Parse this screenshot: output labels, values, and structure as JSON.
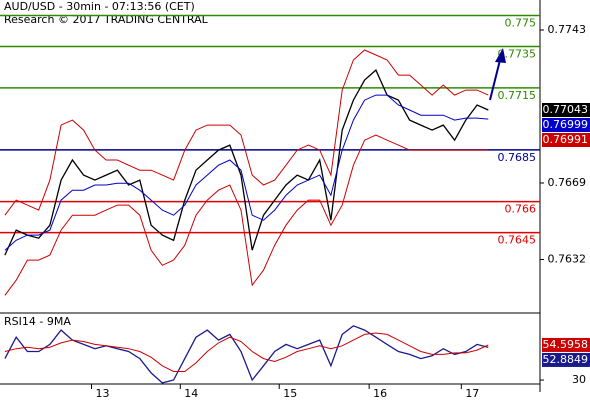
{
  "chart_data": [
    {
      "type": "line",
      "title": "AUD/USD - 30min - 07:13:56 (CET)",
      "subtitle": "Research © 2017 TRADING CENTRAL",
      "x": [
        0,
        1,
        2,
        3,
        4,
        5,
        6,
        7,
        8,
        9,
        10,
        11,
        12,
        13,
        14,
        15,
        16,
        17,
        18,
        19,
        20,
        21,
        22,
        23,
        24,
        25,
        26,
        27,
        28,
        29,
        30,
        31,
        32,
        33,
        34,
        35,
        36,
        37,
        38,
        39,
        40,
        41,
        42,
        43
      ],
      "xlim": [
        -0.44,
        47.6
      ],
      "ylim": [
        0.76066,
        0.77575
      ],
      "yticks": [
        0.7743,
        0.7669,
        0.7632
      ],
      "series": [
        {
          "color": "#000000",
          "last_value_tag": true,
          "values": [
            0.76341,
            0.76462,
            0.76438,
            0.76423,
            0.76486,
            0.76704,
            0.76801,
            0.76728,
            0.76704,
            0.76728,
            0.76752,
            0.7668,
            0.76704,
            0.76486,
            0.76438,
            0.76413,
            0.76607,
            0.76752,
            0.76801,
            0.76849,
            0.76873,
            0.76728,
            0.76365,
            0.76534,
            0.76607,
            0.7668,
            0.76728,
            0.76704,
            0.76801,
            0.7651,
            0.76946,
            0.77091,
            0.77188,
            0.77236,
            0.77115,
            0.77091,
            0.76994,
            0.7697,
            0.76946,
            0.7697,
            0.76897,
            0.76994,
            0.77067,
            0.77043
          ]
        },
        {
          "color": "#cc0000",
          "values": [
            0.76534,
            0.76607,
            0.76583,
            0.76559,
            0.76704,
            0.7697,
            0.76994,
            0.76946,
            0.76849,
            0.76801,
            0.76801,
            0.76776,
            0.76752,
            0.76752,
            0.76728,
            0.76704,
            0.76849,
            0.76946,
            0.7697,
            0.7697,
            0.7697,
            0.76922,
            0.76728,
            0.7668,
            0.76704,
            0.76776,
            0.76849,
            0.76873,
            0.76849,
            0.76728,
            0.77139,
            0.77285,
            0.77333,
            0.77309,
            0.77285,
            0.77212,
            0.77212,
            0.77164,
            0.77115,
            0.77164,
            0.77115,
            0.77139,
            0.77139,
            0.77115
          ]
        },
        {
          "color": "#cc0000",
          "values": [
            0.76147,
            0.7622,
            0.76317,
            0.76317,
            0.76341,
            0.76462,
            0.76534,
            0.76534,
            0.76534,
            0.76559,
            0.76583,
            0.76583,
            0.76534,
            0.76365,
            0.76292,
            0.76317,
            0.76389,
            0.76534,
            0.76607,
            0.76655,
            0.7668,
            0.76559,
            0.76196,
            0.76268,
            0.76389,
            0.76486,
            0.76559,
            0.76607,
            0.76607,
            0.76486,
            0.76583,
            0.76776,
            0.76897,
            0.76922,
            0.76897,
            0.76873,
            0.76849,
            0.76849,
            0.76849,
            0.76849,
            0.76849,
            0.76849,
            0.76849,
            0.76849
          ]
        },
        {
          "color": "#0000cc",
          "last_value_tag": true,
          "values": [
            0.76365,
            0.76413,
            0.76438,
            0.76438,
            0.76462,
            0.76607,
            0.76655,
            0.76655,
            0.7668,
            0.7668,
            0.76689,
            0.76689,
            0.76655,
            0.76607,
            0.76559,
            0.76534,
            0.76583,
            0.7668,
            0.76728,
            0.76776,
            0.76801,
            0.76752,
            0.76534,
            0.7651,
            0.76559,
            0.76631,
            0.7668,
            0.76704,
            0.76728,
            0.76631,
            0.76849,
            0.76994,
            0.77091,
            0.77115,
            0.77115,
            0.77067,
            0.77043,
            0.77018,
            0.77018,
            0.77018,
            0.76994,
            0.77004,
            0.77004,
            0.76999
          ]
        }
      ],
      "tags": [
        {
          "value": 0.76991,
          "color": "#cc0000"
        }
      ],
      "levels": [
        {
          "value": 0.775,
          "color": "#2e8b00"
        },
        {
          "value": 0.7735,
          "color": "#2e8b00"
        },
        {
          "value": 0.7715,
          "color": "#2e8b00"
        },
        {
          "value": 0.7685,
          "color": "#00008b"
        },
        {
          "value": 0.766,
          "color": "#e00000"
        },
        {
          "value": 0.7645,
          "color": "#e00000"
        }
      ]
    },
    {
      "type": "line",
      "title": "RSI14 - 9MA",
      "x": [
        0,
        1,
        2,
        3,
        4,
        5,
        6,
        7,
        8,
        9,
        10,
        11,
        12,
        13,
        14,
        15,
        16,
        17,
        18,
        19,
        20,
        21,
        22,
        23,
        24,
        25,
        26,
        27,
        28,
        29,
        30,
        31,
        32,
        33,
        34,
        35,
        36,
        37,
        38,
        39,
        40,
        41,
        42,
        43
      ],
      "xlim": [
        -0.44,
        47.6
      ],
      "xticks": [
        {
          "value": 7.7,
          "label": "13"
        },
        {
          "value": 15.6,
          "label": "14"
        },
        {
          "value": 24.4,
          "label": "15"
        },
        {
          "value": 32.4,
          "label": "16"
        },
        {
          "value": 40.6,
          "label": "17"
        }
      ],
      "ylim": [
        21.6,
        75.6
      ],
      "yticks": [
        30
      ],
      "series": [
        {
          "color": "#1a1a8c",
          "last_value_tag": true,
          "values": [
            45,
            60,
            50,
            50,
            55,
            65,
            58,
            55,
            52,
            54,
            52,
            50,
            45,
            35,
            28,
            30,
            45,
            60,
            65,
            58,
            62,
            50,
            30,
            40,
            50,
            55,
            52,
            55,
            58,
            40,
            62,
            68,
            65,
            60,
            55,
            50,
            48,
            45,
            47,
            52,
            48,
            50,
            55,
            52.8849
          ]
        },
        {
          "color": "#cc0000",
          "last_value_tag": true,
          "values": [
            50,
            52,
            53,
            52,
            53,
            56,
            58,
            57,
            55,
            54,
            53,
            52,
            50,
            46,
            40,
            36,
            36,
            42,
            50,
            56,
            60,
            57,
            50,
            45,
            43,
            46,
            50,
            52,
            54,
            52,
            54,
            58,
            62,
            63,
            62,
            58,
            54,
            50,
            48,
            48,
            49,
            49,
            51,
            54.5958
          ]
        }
      ]
    }
  ]
}
